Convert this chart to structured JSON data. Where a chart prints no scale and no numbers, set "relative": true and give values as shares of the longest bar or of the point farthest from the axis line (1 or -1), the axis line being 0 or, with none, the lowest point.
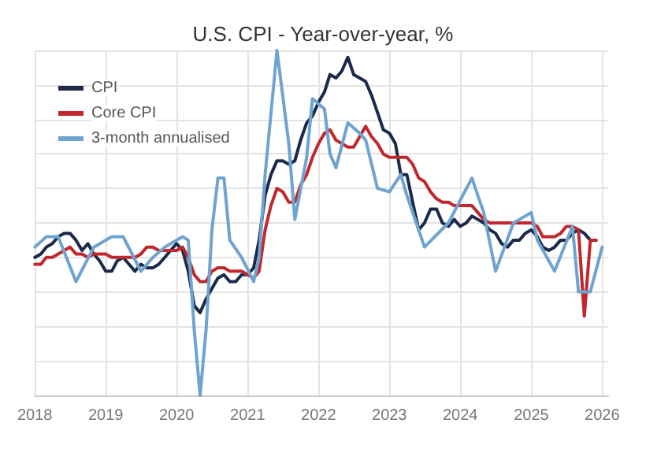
{
  "chart_data": {
    "type": "line",
    "title": "U.S. CPI - Year-over-year, %",
    "relative": true,
    "grid": true,
    "legend": "top left",
    "marker": "none",
    "line_style": "solid",
    "xlim": [
      "2018-01",
      "2026-02"
    ],
    "xticks": [
      "2018",
      "2019",
      "2020",
      "2021",
      "2022",
      "2023",
      "2024",
      "2025",
      "2026"
    ],
    "x": [
      "2018-01",
      "2018-02",
      "2018-03",
      "2018-04",
      "2018-05",
      "2018-06",
      "2018-07",
      "2018-08",
      "2018-09",
      "2018-10",
      "2018-11",
      "2018-12",
      "2019-01",
      "2019-02",
      "2019-03",
      "2019-04",
      "2019-05",
      "2019-06",
      "2019-07",
      "2019-08",
      "2019-09",
      "2019-10",
      "2019-11",
      "2019-12",
      "2020-01",
      "2020-02",
      "2020-03",
      "2020-04",
      "2020-05",
      "2020-06",
      "2020-07",
      "2020-08",
      "2020-09",
      "2020-10",
      "2020-11",
      "2020-12",
      "2021-01",
      "2021-02",
      "2021-03",
      "2021-04",
      "2021-05",
      "2021-06",
      "2021-07",
      "2021-08",
      "2021-09",
      "2021-10",
      "2021-11",
      "2021-12",
      "2022-01",
      "2022-02",
      "2022-03",
      "2022-04",
      "2022-05",
      "2022-06",
      "2022-07",
      "2022-08",
      "2022-09",
      "2022-10",
      "2022-11",
      "2022-12",
      "2023-01",
      "2023-02",
      "2023-03",
      "2023-04",
      "2023-05",
      "2023-06",
      "2023-07",
      "2023-08",
      "2023-09",
      "2023-10",
      "2023-11",
      "2023-12",
      "2024-01",
      "2024-02",
      "2024-03",
      "2024-04",
      "2024-05",
      "2024-06",
      "2024-07",
      "2024-08",
      "2024-09",
      "2024-10",
      "2024-11",
      "2024-12",
      "2025-01",
      "2025-02",
      "2025-03",
      "2025-04",
      "2025-05",
      "2025-06",
      "2025-07",
      "2025-08",
      "2025-09",
      "2025-10",
      "2025-11",
      "2025-12"
    ],
    "series": [
      {
        "name": "CPI",
        "color": "#1b2a4a",
        "values": [
          0.4,
          0.41,
          0.43,
          0.44,
          0.46,
          0.47,
          0.47,
          0.45,
          0.42,
          0.44,
          0.41,
          0.39,
          0.36,
          0.36,
          0.39,
          0.4,
          0.38,
          0.36,
          0.38,
          0.37,
          0.37,
          0.38,
          0.4,
          0.42,
          0.44,
          0.42,
          0.36,
          0.26,
          0.24,
          0.28,
          0.31,
          0.34,
          0.35,
          0.33,
          0.33,
          0.35,
          0.35,
          0.37,
          0.45,
          0.58,
          0.64,
          0.68,
          0.68,
          0.67,
          0.68,
          0.74,
          0.79,
          0.81,
          0.85,
          0.88,
          0.93,
          0.92,
          0.94,
          0.98,
          0.93,
          0.92,
          0.91,
          0.87,
          0.82,
          0.77,
          0.76,
          0.73,
          0.64,
          0.64,
          0.56,
          0.48,
          0.5,
          0.54,
          0.54,
          0.5,
          0.49,
          0.51,
          0.49,
          0.5,
          0.52,
          0.51,
          0.5,
          0.48,
          0.47,
          0.44,
          0.43,
          0.45,
          0.45,
          0.47,
          0.48,
          0.46,
          0.43,
          0.42,
          0.43,
          0.45,
          0.45,
          0.47,
          0.48,
          0.47,
          0.45,
          0.45
        ]
      },
      {
        "name": "Core CPI",
        "color": "#c0282d",
        "values": [
          0.38,
          0.38,
          0.4,
          0.4,
          0.41,
          0.42,
          0.43,
          0.41,
          0.41,
          0.4,
          0.41,
          0.41,
          0.41,
          0.4,
          0.4,
          0.4,
          0.4,
          0.4,
          0.41,
          0.43,
          0.43,
          0.42,
          0.42,
          0.42,
          0.42,
          0.43,
          0.4,
          0.35,
          0.33,
          0.33,
          0.36,
          0.37,
          0.37,
          0.36,
          0.36,
          0.36,
          0.35,
          0.34,
          0.36,
          0.48,
          0.55,
          0.6,
          0.59,
          0.56,
          0.56,
          0.61,
          0.64,
          0.69,
          0.73,
          0.76,
          0.77,
          0.74,
          0.73,
          0.72,
          0.72,
          0.75,
          0.78,
          0.75,
          0.73,
          0.7,
          0.69,
          0.69,
          0.69,
          0.69,
          0.67,
          0.63,
          0.62,
          0.59,
          0.57,
          0.56,
          0.56,
          0.55,
          0.55,
          0.55,
          0.55,
          0.53,
          0.51,
          0.5,
          0.5,
          0.5,
          0.5,
          0.5,
          0.5,
          0.5,
          0.5,
          0.49,
          0.46,
          0.46,
          0.46,
          0.47,
          0.49,
          0.49,
          0.48,
          0.23,
          0.45,
          0.45
        ]
      },
      {
        "name": "3-month annualised",
        "color": "#6fa3d0",
        "x": [
          "2018-01",
          "2018-03",
          "2018-05",
          "2018-08",
          "2018-11",
          "2019-02",
          "2019-04",
          "2019-07",
          "2019-09",
          "2019-11",
          "2020-02",
          "2020-03",
          "2020-04",
          "2020-05",
          "2020-06",
          "2020-07",
          "2020-08",
          "2020-09",
          "2020-10",
          "2020-12",
          "2021-02",
          "2021-03",
          "2021-04",
          "2021-06",
          "2021-08",
          "2021-09",
          "2021-11",
          "2021-12",
          "2022-02",
          "2022-03",
          "2022-04",
          "2022-06",
          "2022-08",
          "2022-09",
          "2022-11",
          "2023-01",
          "2023-03",
          "2023-04",
          "2023-07",
          "2023-11",
          "2024-03",
          "2024-05",
          "2024-07",
          "2024-10",
          "2025-01",
          "2025-02",
          "2025-05",
          "2025-08",
          "2025-09",
          "2025-11",
          "2026-01"
        ],
        "values": [
          0.43,
          0.46,
          0.46,
          0.33,
          0.43,
          0.46,
          0.46,
          0.36,
          0.4,
          0.43,
          0.46,
          0.45,
          0.19,
          0,
          0.19,
          0.48,
          0.63,
          0.63,
          0.45,
          0.4,
          0.33,
          0.4,
          0.64,
          1.0,
          0.73,
          0.51,
          0.69,
          0.86,
          0.83,
          0.7,
          0.66,
          0.79,
          0.76,
          0.74,
          0.6,
          0.59,
          0.64,
          0.58,
          0.43,
          0.5,
          0.63,
          0.53,
          0.36,
          0.5,
          0.53,
          0.45,
          0.36,
          0.49,
          0.3,
          0.3,
          0.43
        ]
      }
    ]
  }
}
